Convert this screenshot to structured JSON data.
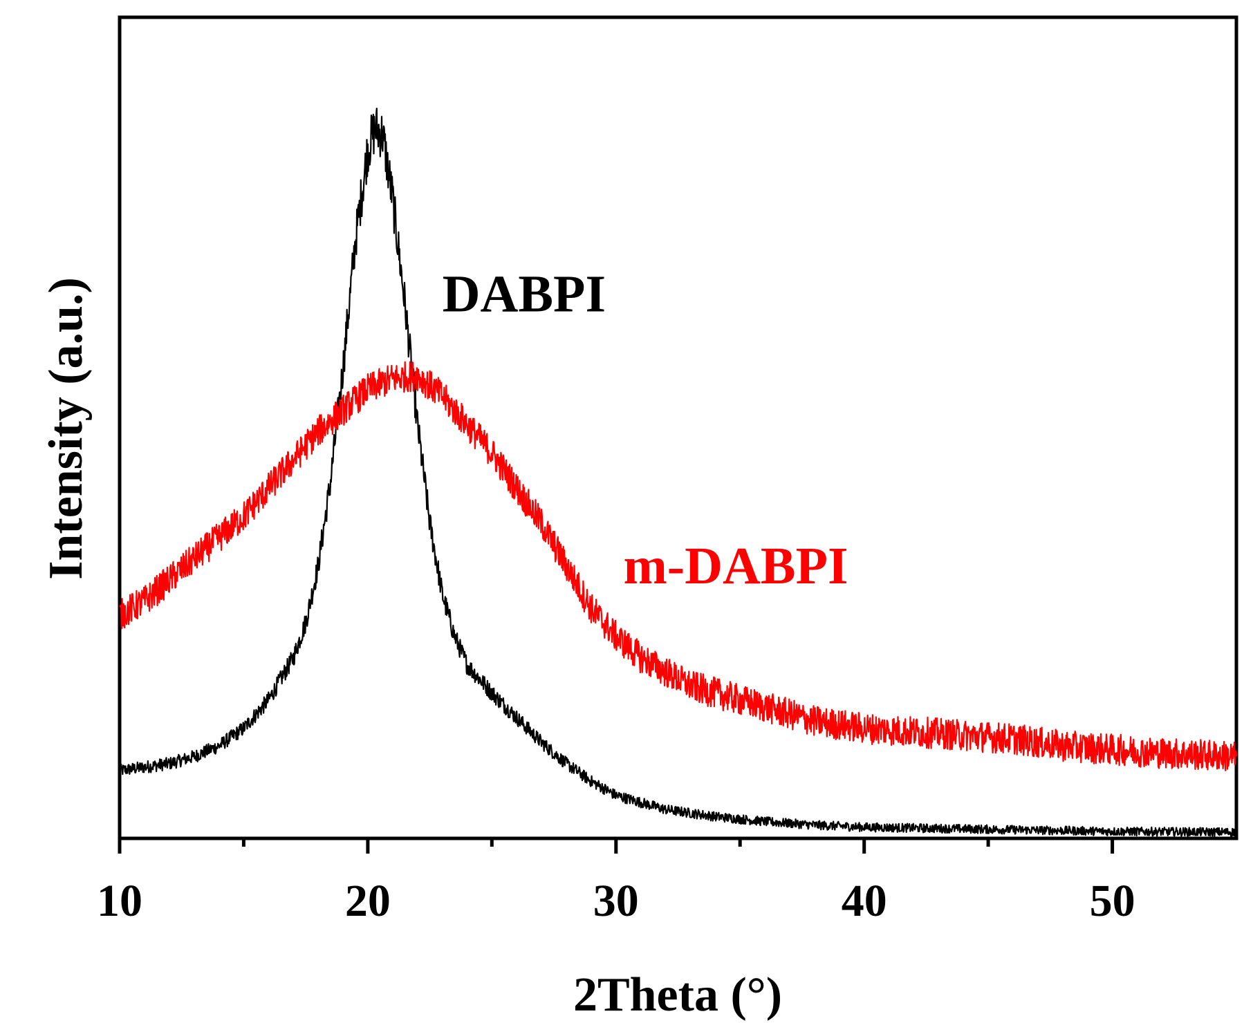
{
  "chart_data": {
    "type": "line",
    "title": "",
    "xlabel": "2Theta (°)",
    "ylabel": "Intensity (a.u.)",
    "xlim": [
      10,
      55
    ],
    "ylim": [
      0,
      1
    ],
    "x_ticks": [
      10,
      20,
      30,
      40,
      50
    ],
    "x_minor_ticks": [
      15,
      25,
      35,
      45
    ],
    "y_tick_labels_shown": false,
    "grid": false,
    "legend": "inline labels",
    "series": [
      {
        "name": "DABPI",
        "color": "#000000",
        "label_anchor": [
          23,
          0.74
        ],
        "x": [
          10,
          11,
          12,
          13,
          14,
          15,
          16,
          17,
          17.5,
          18,
          18.5,
          19,
          19.5,
          20,
          20.3,
          20.6,
          21,
          21.5,
          22,
          22.5,
          23,
          23.5,
          24,
          25,
          26,
          27,
          28,
          29,
          30,
          32,
          34,
          36,
          38,
          40,
          45,
          50,
          55
        ],
        "y": [
          0.09,
          0.095,
          0.1,
          0.11,
          0.125,
          0.15,
          0.19,
          0.25,
          0.3,
          0.38,
          0.5,
          0.66,
          0.84,
          0.97,
          1.0,
          0.99,
          0.9,
          0.75,
          0.58,
          0.44,
          0.34,
          0.28,
          0.24,
          0.2,
          0.165,
          0.13,
          0.1,
          0.075,
          0.055,
          0.035,
          0.025,
          0.018,
          0.013,
          0.01,
          0.007,
          0.004,
          0.003
        ]
      },
      {
        "name": "m-DABPI",
        "color": "#ff0000",
        "label_anchor": [
          30.3,
          0.355
        ],
        "x": [
          10,
          11,
          12,
          13,
          14,
          15,
          16,
          17,
          18,
          19,
          20,
          21,
          22,
          23,
          24,
          25,
          26,
          27,
          28,
          29,
          30,
          31,
          32,
          33,
          34,
          35,
          36,
          37,
          38,
          39,
          40,
          42,
          44,
          46,
          48,
          50,
          52,
          55
        ],
        "y": [
          0.31,
          0.33,
          0.36,
          0.39,
          0.42,
          0.45,
          0.49,
          0.53,
          0.57,
          0.6,
          0.63,
          0.645,
          0.65,
          0.62,
          0.58,
          0.54,
          0.49,
          0.44,
          0.38,
          0.32,
          0.28,
          0.25,
          0.23,
          0.21,
          0.2,
          0.19,
          0.18,
          0.17,
          0.16,
          0.155,
          0.15,
          0.145,
          0.14,
          0.135,
          0.125,
          0.12,
          0.115,
          0.11
        ]
      }
    ]
  }
}
